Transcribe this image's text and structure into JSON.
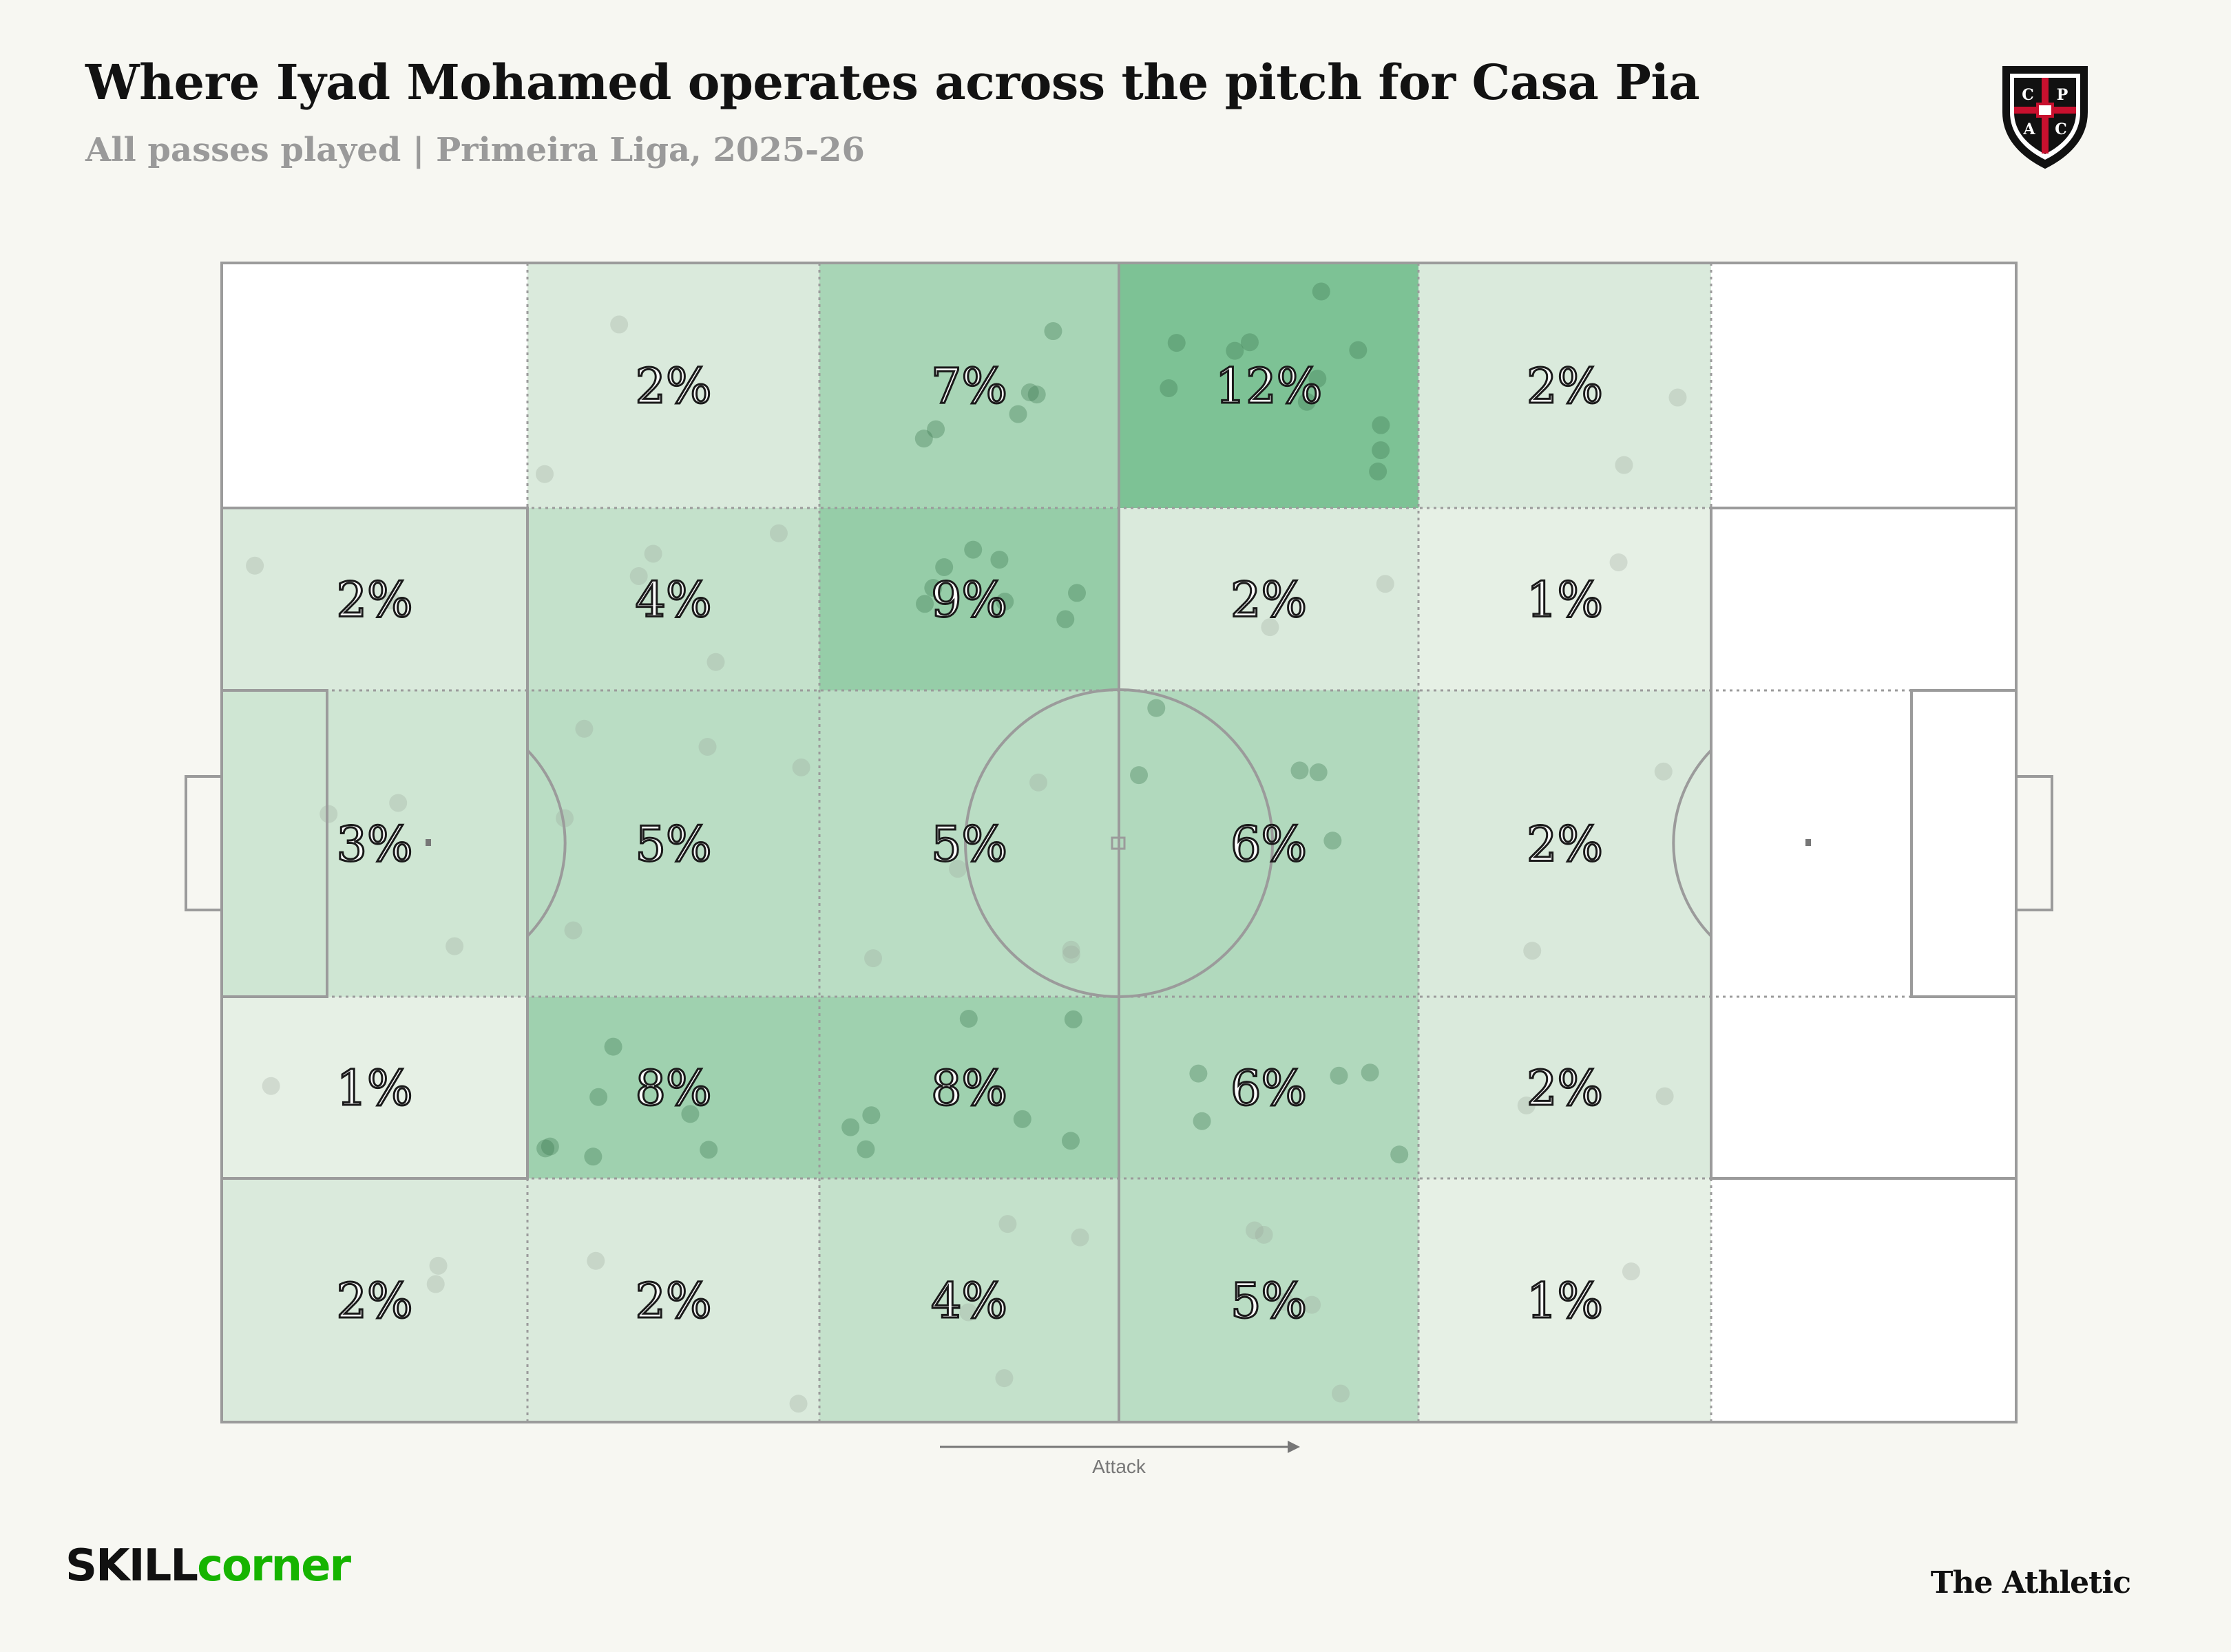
{
  "header": {
    "title": "Where Iyad Mohamed operates across the pitch for Casa Pia",
    "subtitle": "All passes played | Primeira Liga, 2025-26"
  },
  "crest": {
    "letters": [
      "C",
      "P",
      "A",
      "C"
    ],
    "colors": {
      "black": "#111111",
      "red": "#c8102e",
      "white": "#ffffff"
    }
  },
  "direction_label": "Attack",
  "footer": {
    "brand_left_part1": "SKILL",
    "brand_left_part2": "corner",
    "brand_right": "The Athletic"
  },
  "chart_data": {
    "type": "heatmap",
    "title": "Where Iyad Mohamed operates across the pitch for Casa Pia",
    "subtitle": "All passes played | Primeira Liga, 2025-26",
    "color_scale": {
      "low": "#f7f7f2",
      "high": "#7dc295"
    },
    "columns": 6,
    "rows": 5,
    "values": [
      [
        null,
        2,
        7,
        12,
        2,
        null
      ],
      [
        2,
        4,
        9,
        2,
        1,
        null
      ],
      [
        3,
        5,
        5,
        6,
        2,
        null
      ],
      [
        1,
        8,
        8,
        6,
        2,
        null
      ],
      [
        2,
        2,
        4,
        5,
        1,
        null
      ]
    ],
    "unit": "%",
    "direction": "Attack"
  }
}
